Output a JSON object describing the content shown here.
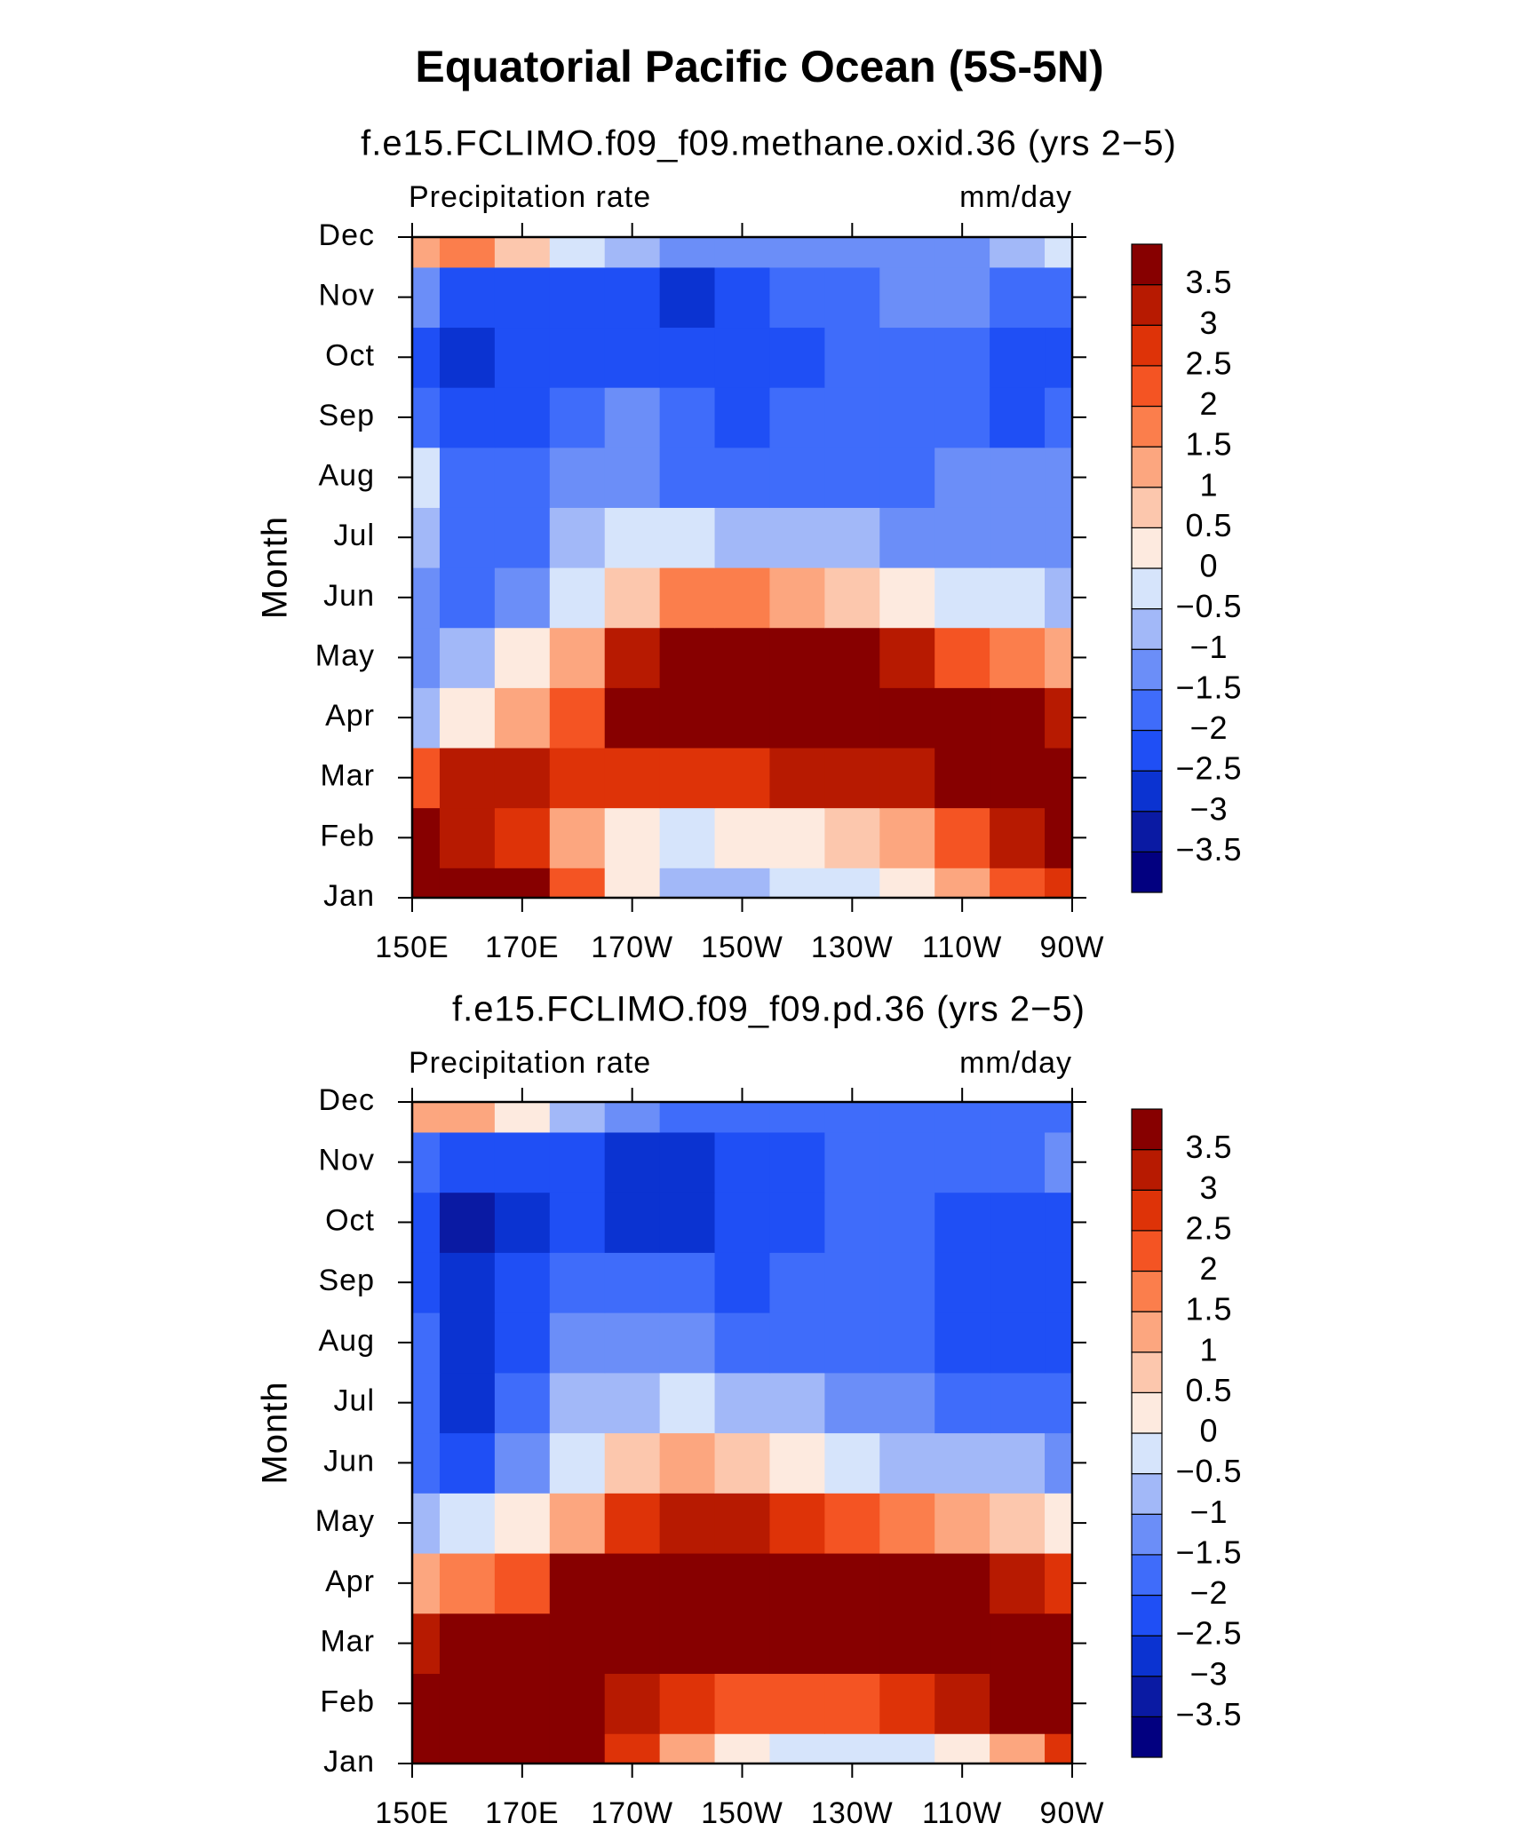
{
  "title": "Equatorial Pacific Ocean (5S-5N)",
  "chart_data": [
    {
      "type": "contour",
      "title": "f.e15.FCLIMO.f09_f09.methane.oxid.36 (yrs 2−5)",
      "left_label": "Precipitation rate",
      "right_label": "mm/day",
      "ylabel": "Month",
      "categories": [
        "Jan",
        "Feb",
        "Mar",
        "Apr",
        "May",
        "Jun",
        "Jul",
        "Aug",
        "Sep",
        "Oct",
        "Nov",
        "Dec"
      ],
      "x": [
        150,
        160,
        170,
        180,
        190,
        200,
        210,
        220,
        230,
        240,
        250,
        260,
        270
      ],
      "xlim": [
        150,
        270
      ],
      "xticks": [
        {
          "value": 150,
          "label": "150E"
        },
        {
          "value": 170,
          "label": "170E"
        },
        {
          "value": 190,
          "label": "170W"
        },
        {
          "value": 210,
          "label": "150W"
        },
        {
          "value": 230,
          "label": "130W"
        },
        {
          "value": 250,
          "label": "110W"
        },
        {
          "value": 270,
          "label": "90W"
        }
      ],
      "z": [
        [
          4,
          4,
          3.5,
          2,
          0,
          -1,
          -1,
          -0.5,
          -0.3,
          0,
          1,
          2,
          2.5
        ],
        [
          4,
          3,
          2.5,
          1,
          0,
          -0.3,
          0,
          0.3,
          0.5,
          1,
          2,
          3,
          3.5
        ],
        [
          2,
          3,
          3,
          2.5,
          2.5,
          2.5,
          2.5,
          3,
          3,
          3,
          3.5,
          4,
          4
        ],
        [
          -1,
          0,
          1,
          2,
          4,
          4,
          4,
          4,
          4,
          4,
          4,
          3.5,
          3
        ],
        [
          -1.5,
          -1,
          0,
          1,
          3,
          4,
          4,
          4,
          3.5,
          3,
          2,
          1.5,
          1
        ],
        [
          -1.5,
          -2,
          -1.5,
          -0.5,
          0.5,
          1.5,
          1.5,
          1,
          0.5,
          0,
          -0.3,
          -0.5,
          -0.8
        ],
        [
          -1,
          -2,
          -2,
          -1,
          -0.5,
          -0.5,
          -0.8,
          -1,
          -1,
          -1.5,
          -1.5,
          -1.5,
          -1.5
        ],
        [
          -0.5,
          -2,
          -2,
          -1.5,
          -1.5,
          -2,
          -2,
          -2,
          -2,
          -2,
          -1.5,
          -1.5,
          -1.5
        ],
        [
          -2,
          -2.5,
          -2.5,
          -2,
          -1.5,
          -2,
          -2.5,
          -2,
          -2,
          -2,
          -2,
          -2.5,
          -2
        ],
        [
          -2.5,
          -3,
          -2.5,
          -2.5,
          -2.5,
          -2.5,
          -2.5,
          -2.5,
          -2,
          -2,
          -2,
          -2.5,
          -2.5
        ],
        [
          -1.5,
          -2.5,
          -2.5,
          -2.5,
          -2.5,
          -3,
          -2.5,
          -2,
          -2,
          -1.5,
          -1.5,
          -2,
          -2
        ],
        [
          1,
          1.5,
          0.5,
          -0.5,
          -1,
          -1.5,
          -1.5,
          -1.5,
          -1.5,
          -1.5,
          -1.5,
          -1,
          -0.5
        ]
      ],
      "levels": [
        {
          "value": -3.5,
          "label": "−3.5"
        },
        {
          "value": -3,
          "label": "−3"
        },
        {
          "value": -2.5,
          "label": "−2.5"
        },
        {
          "value": -2,
          "label": "−2"
        },
        {
          "value": -1.5,
          "label": "−1.5"
        },
        {
          "value": -1,
          "label": "−1"
        },
        {
          "value": -0.5,
          "label": "−0.5"
        },
        0,
        0.5,
        1,
        1.5,
        2,
        2.5,
        3,
        3.5
      ],
      "colors": [
        "#020080",
        "#0a1aa3",
        "#0b33d1",
        "#1f4ff5",
        "#3f6cfa",
        "#6b8ef8",
        "#a2b8f8",
        "#d6e4fb",
        "#fdeadf",
        "#fcc7ad",
        "#fca67f",
        "#fb7e4c",
        "#f45423",
        "#de3308",
        "#b71a01",
        "#870000"
      ]
    },
    {
      "type": "contour",
      "title": "f.e15.FCLIMO.f09_f09.pd.36 (yrs 2−5)",
      "left_label": "Precipitation rate",
      "right_label": "mm/day",
      "ylabel": "Month",
      "categories": [
        "Jan",
        "Feb",
        "Mar",
        "Apr",
        "May",
        "Jun",
        "Jul",
        "Aug",
        "Sep",
        "Oct",
        "Nov",
        "Dec"
      ],
      "x": [
        150,
        160,
        170,
        180,
        190,
        200,
        210,
        220,
        230,
        240,
        250,
        260,
        270
      ],
      "xlim": [
        150,
        270
      ],
      "xticks": [
        {
          "value": 150,
          "label": "150E"
        },
        {
          "value": 170,
          "label": "170E"
        },
        {
          "value": 190,
          "label": "170W"
        },
        {
          "value": 210,
          "label": "150W"
        },
        {
          "value": 230,
          "label": "130W"
        },
        {
          "value": 250,
          "label": "110W"
        },
        {
          "value": 270,
          "label": "90W"
        }
      ],
      "z": [
        [
          4,
          4,
          4,
          4,
          2.5,
          1,
          0,
          -0.3,
          -0.3,
          -0.3,
          0,
          1,
          2.5
        ],
        [
          4,
          4,
          4,
          3.5,
          3,
          2.5,
          2,
          2,
          2,
          2.5,
          3,
          3.5,
          4
        ],
        [
          3,
          4,
          4,
          3.5,
          3.5,
          4,
          4,
          4,
          4,
          4,
          4,
          4,
          4
        ],
        [
          1,
          1.5,
          2,
          3.5,
          4,
          4,
          4,
          4,
          4,
          4,
          3.5,
          3,
          2.5
        ],
        [
          -1,
          -0.5,
          0,
          1,
          2.5,
          3,
          3,
          2.5,
          2,
          1.5,
          1,
          0.5,
          0
        ],
        [
          -2,
          -2.5,
          -1.5,
          -0.5,
          0.5,
          1,
          0.5,
          0,
          -0.5,
          -0.8,
          -1,
          -1,
          -1.2
        ],
        [
          -2,
          -3,
          -2,
          -1,
          -1,
          -0.5,
          -1,
          -1,
          -1.5,
          -1.5,
          -2,
          -2,
          -2
        ],
        [
          -2,
          -3,
          -2.5,
          -1.5,
          -1.5,
          -1.5,
          -2,
          -2,
          -2,
          -2,
          -2.5,
          -2.5,
          -2.5
        ],
        [
          -2.5,
          -3,
          -2.5,
          -2,
          -2,
          -2,
          -2.5,
          -2,
          -2,
          -2,
          -2.5,
          -2.5,
          -2.5
        ],
        [
          -2.5,
          -3.5,
          -3,
          -2.5,
          -3,
          -3,
          -2.5,
          -2.5,
          -2,
          -2,
          -2.5,
          -2.5,
          -2.5
        ],
        [
          -2,
          -2.5,
          -2.5,
          -2.5,
          -3,
          -3,
          -2.5,
          -2.5,
          -2,
          -2,
          -2,
          -2,
          -1.5
        ],
        [
          1,
          1,
          0,
          -1,
          -1.5,
          -2,
          -2,
          -2,
          -2,
          -2,
          -2,
          -2,
          -2
        ]
      ],
      "levels": [
        {
          "value": -3.5,
          "label": "−3.5"
        },
        {
          "value": -3,
          "label": "−3"
        },
        {
          "value": -2.5,
          "label": "−2.5"
        },
        {
          "value": -2,
          "label": "−2"
        },
        {
          "value": -1.5,
          "label": "−1.5"
        },
        {
          "value": -1,
          "label": "−1"
        },
        {
          "value": -0.5,
          "label": "−0.5"
        },
        0,
        0.5,
        1,
        1.5,
        2,
        2.5,
        3,
        3.5
      ],
      "colors": [
        "#020080",
        "#0a1aa3",
        "#0b33d1",
        "#1f4ff5",
        "#3f6cfa",
        "#6b8ef8",
        "#a2b8f8",
        "#d6e4fb",
        "#fdeadf",
        "#fcc7ad",
        "#fca67f",
        "#fb7e4c",
        "#f45423",
        "#de3308",
        "#b71a01",
        "#870000"
      ]
    }
  ]
}
